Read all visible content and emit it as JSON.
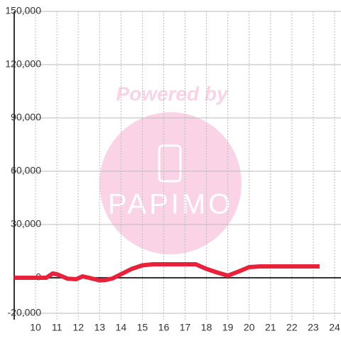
{
  "chart_data": {
    "type": "line",
    "x": [
      9,
      10,
      10.5,
      10.8,
      11,
      11.5,
      11.9,
      12.2,
      12.5,
      13,
      13.3,
      13.6,
      14,
      14.5,
      15,
      15.5,
      16,
      17,
      17.5,
      18,
      18.5,
      19,
      19.5,
      20,
      20.5,
      21,
      22,
      23,
      23.3
    ],
    "series": [
      {
        "name": null,
        "color": "#e8223a",
        "values": [
          0,
          0,
          0,
          2400,
          2000,
          -500,
          -800,
          800,
          0,
          -1500,
          -1200,
          -400,
          2000,
          5000,
          7000,
          7600,
          7600,
          7600,
          7600,
          5000,
          3000,
          1200,
          3500,
          6000,
          6400,
          6400,
          6400,
          6400,
          6400
        ]
      }
    ],
    "xlim": [
      9,
      24.3
    ],
    "xticks": [
      10,
      11,
      12,
      13,
      14,
      15,
      16,
      17,
      18,
      19,
      20,
      21,
      22,
      23,
      24
    ],
    "ylim": [
      -20000,
      150000
    ],
    "yticks": [
      {
        "value": -20000,
        "label": "-20,000"
      },
      0,
      {
        "value": 30000,
        "label": "30,000"
      },
      {
        "value": 60000,
        "label": "60,000"
      },
      {
        "value": 90000,
        "label": "90,000"
      },
      {
        "value": 120000,
        "label": "120,000"
      },
      {
        "value": 150000,
        "label": "150,000"
      }
    ],
    "grid": true,
    "watermark": {
      "text": "Powered by",
      "logo": "PAPIMO"
    }
  }
}
